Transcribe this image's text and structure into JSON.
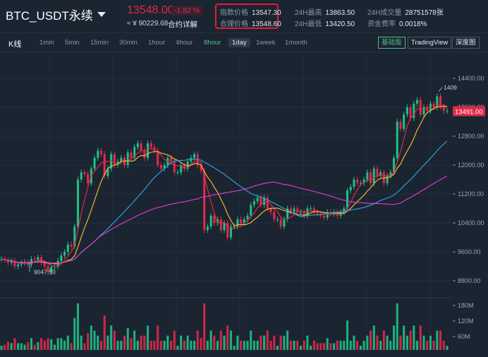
{
  "header": {
    "symbol": "BTC_USDT永续",
    "last_price": "13548.00",
    "change_pct": "-1.82 %",
    "cny_price": "≈ ¥ 90229.68",
    "contract_detail": "合约详解",
    "index_price_label": "指数价格",
    "index_price": "13547.30",
    "fair_price_label": "合理价格",
    "fair_price": "13548.60",
    "high_label": "24H最高",
    "high": "13863.50",
    "low_label": "24H最低",
    "low": "13420.50",
    "volume_label": "24H成交量",
    "volume": "28751578张",
    "funding_label": "资金费率",
    "funding": "0.0018%"
  },
  "toolbar": {
    "kline_label": "K线",
    "timeframes": [
      "1min",
      "5min",
      "15min",
      "30min",
      "1hour",
      "4hour",
      "8hour",
      "1day",
      "1week",
      "1month"
    ],
    "highlighted_timeframe": "8hour",
    "selected_timeframe": "1day",
    "views": [
      "基础版",
      "TradingView",
      "深度图"
    ],
    "active_view": "基础版"
  },
  "chart_data": {
    "type": "candlestick",
    "price_axis_ticks": [
      "14400.00",
      "13600.00",
      "12800.00",
      "12000.00",
      "11200.00",
      "10400.00",
      "9600.00",
      "8800.00"
    ],
    "volume_axis_ticks": [
      "180M",
      "120M",
      "60M"
    ],
    "current_price_tag": "13491.00",
    "low_marker": "9047.50",
    "high_marker": "1409",
    "colors": {
      "up": "#1fbf86",
      "down": "#e0294a",
      "ma_short": "#e0294a",
      "ma_mid": "#f3b431",
      "ma_long": "#2ba0d8",
      "ma_longest": "#d83bc8"
    },
    "closes": [
      9400,
      9380,
      9300,
      9350,
      9200,
      9250,
      9300,
      9320,
      9250,
      9400,
      9380,
      9450,
      9300,
      9200,
      9050,
      9180,
      9200,
      9350,
      9500,
      9600,
      9800,
      9750,
      10300,
      11600,
      11800,
      11750,
      11500,
      11900,
      12200,
      12400,
      12300,
      11700,
      11900,
      12300,
      12000,
      12100,
      12200,
      12000,
      12350,
      12200,
      12500,
      12600,
      12400,
      12200,
      12600,
      12500,
      12400,
      12000,
      11900,
      12000,
      12200,
      12100,
      11800,
      11800,
      12000,
      11900,
      12100,
      12200,
      12300,
      12000,
      11850,
      10200,
      10300,
      10600,
      10400,
      10500,
      10200,
      10400,
      10000,
      10300,
      10300,
      10500,
      10400,
      10500,
      10600,
      10900,
      11000,
      11100,
      10900,
      11100,
      10800,
      10700,
      10500,
      10500,
      10300,
      10500,
      10800,
      10700,
      10800,
      10700,
      10700,
      10600,
      10800,
      10800,
      10700,
      10650,
      10600,
      10550,
      10700,
      10650,
      10700,
      10600,
      10700,
      10800,
      11300,
      11400,
      11600,
      11500,
      11500,
      11600,
      11800,
      11500,
      11900,
      11700,
      11800,
      11500,
      11700,
      11800,
      12200,
      13200,
      13000,
      13400,
      13600,
      13300,
      13700,
      13800,
      13400,
      13600,
      13500,
      13700,
      13600,
      13900,
      13600,
      13500,
      13500
    ]
  }
}
